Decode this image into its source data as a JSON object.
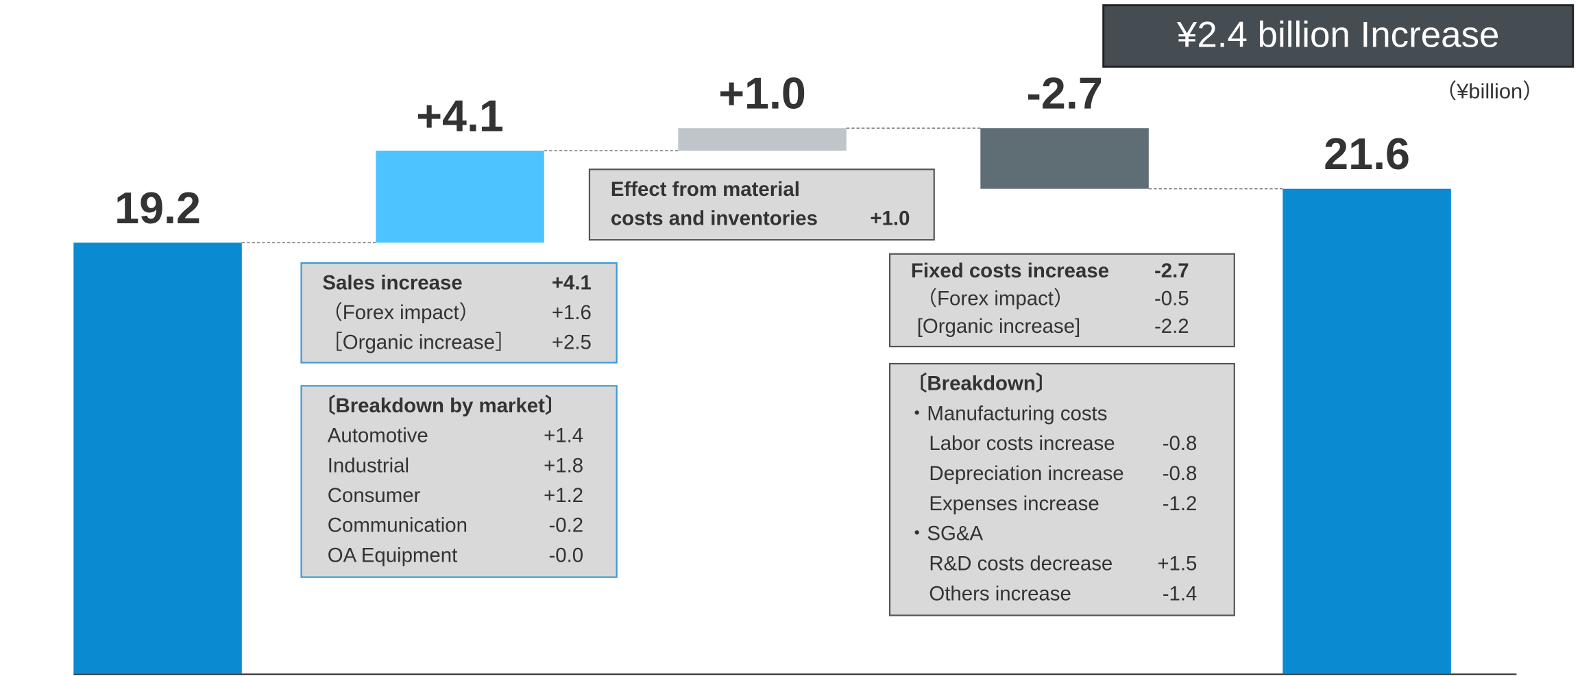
{
  "chart_data": {
    "type": "waterfall",
    "badge": "¥2.4 billion Increase",
    "unit_label": "（¥billion）",
    "values": [
      19.2,
      4.1,
      1.0,
      -2.7,
      21.6
    ],
    "value_labels": [
      "19.2",
      "+4.1",
      "+1.0",
      "-2.7",
      "21.6"
    ],
    "measure": [
      "total",
      "relative",
      "relative",
      "relative",
      "total"
    ],
    "colors": [
      "#0a8ad0",
      "#4dc4ff",
      "#bfc5ca",
      "#5f6d75",
      "#0a8ad0"
    ],
    "ylim": [
      0,
      30
    ],
    "notes": [
      {
        "rows": [
          {
            "label": "Effect from material"
          },
          {
            "label": "costs and inventories",
            "value": "+1.0"
          }
        ]
      },
      {
        "rows": [
          {
            "label": "Sales increase",
            "value": "+4.1"
          },
          {
            "label": "（Forex impact）",
            "value": "+1.6"
          },
          {
            "label": "［Organic increase］",
            "value": "+2.5"
          }
        ]
      },
      {
        "rows": [
          {
            "label": "〔Breakdown by market〕"
          },
          {
            "label": "Automotive",
            "value": "+1.4"
          },
          {
            "label": "Industrial",
            "value": "+1.8"
          },
          {
            "label": "Consumer",
            "value": "+1.2"
          },
          {
            "label": "Communication",
            "value": "-0.2"
          },
          {
            "label": "OA Equipment",
            "value": "-0.0"
          }
        ]
      },
      {
        "rows": [
          {
            "label": "Fixed costs increase",
            "value": "-2.7"
          },
          {
            "label": "（Forex impact）",
            "value": "-0.5"
          },
          {
            "label": "[Organic increase]",
            "value": "-2.2"
          }
        ]
      },
      {
        "rows": [
          {
            "label": "〔Breakdown〕"
          },
          {
            "label": "・Manufacturing costs"
          },
          {
            "label": "Labor costs increase",
            "value": "-0.8"
          },
          {
            "label": "Depreciation increase",
            "value": "-0.8"
          },
          {
            "label": "Expenses increase",
            "value": "-1.2"
          },
          {
            "label": "・SG&A"
          },
          {
            "label": "R&D costs decrease",
            "value": "+1.5"
          },
          {
            "label": "Others increase",
            "value": "-1.4"
          }
        ]
      }
    ]
  }
}
